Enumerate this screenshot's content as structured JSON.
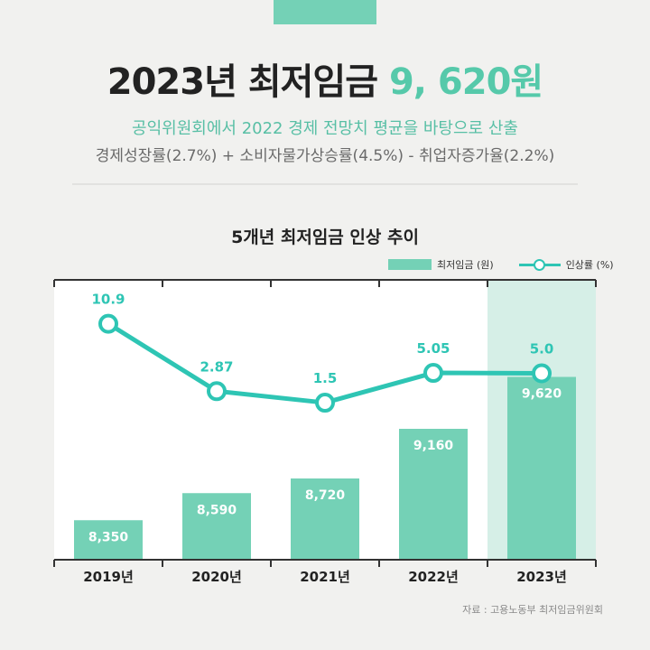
{
  "headline": {
    "prefix": "2023년 최저임금",
    "highlight": "9, 620원"
  },
  "subtitle_1": "공익위원회에서 2022 경제 전망치 평균을 바탕으로 산출",
  "subtitle_2": "경제성장률(2.7%) + 소비자물가상승률(4.5%) - 취업자증가율(2.2%)",
  "source": "자료 : 고용노동부 최저임금위원회",
  "colors": {
    "bar": "#74d1b6",
    "line": "#2ec5b4",
    "highlight_bg": "#d6efe7",
    "accent": "#56c9aa"
  },
  "chart_data": {
    "type": "bar",
    "title": "5개년 최저임금 인상 추이",
    "categories": [
      "2019년",
      "2020년",
      "2021년",
      "2022년",
      "2023년"
    ],
    "series": [
      {
        "name": "최저임금 (원)",
        "type": "bar",
        "values": [
          8350,
          8590,
          8720,
          9160,
          9620
        ],
        "labels": [
          "8,350",
          "8,590",
          "8,720",
          "9,160",
          "9,620"
        ]
      },
      {
        "name": "인상률 (%)",
        "type": "line",
        "values": [
          10.9,
          2.87,
          1.5,
          5.05,
          5.0
        ],
        "labels": [
          "10.9",
          "2.87",
          "1.5",
          "5.05",
          "5.0"
        ]
      }
    ],
    "highlighted_category": "2023년",
    "legend_position": "top-right",
    "grid": false
  }
}
